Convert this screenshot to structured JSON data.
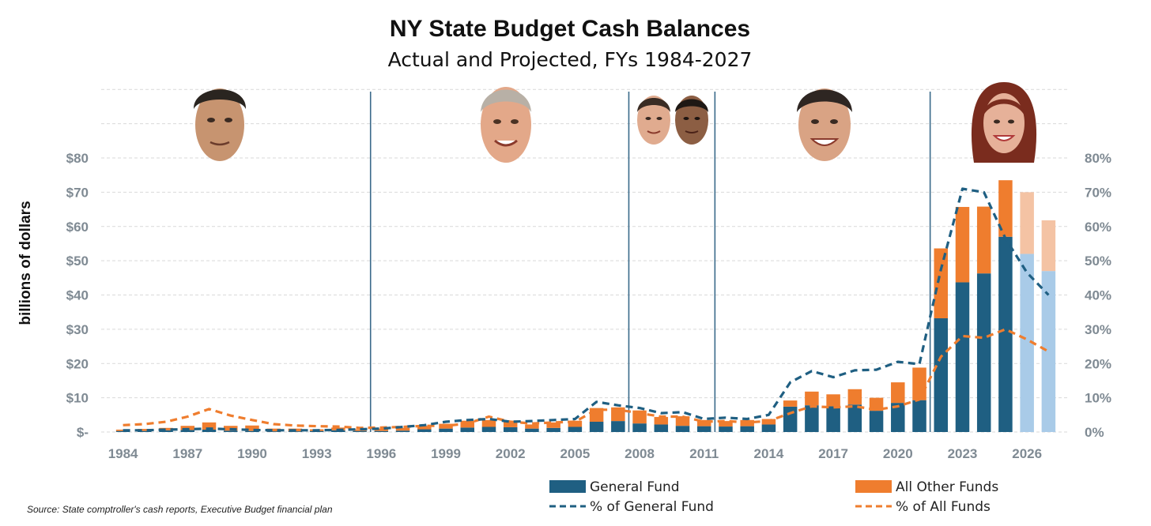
{
  "chart_data": {
    "type": "bar",
    "title": "NY State Budget Cash Balances",
    "subtitle": "Actual and Projected, FYs 1984-2027",
    "ylabel": "billions of dollars",
    "ylim": [
      0,
      80
    ],
    "y2lim": [
      0,
      80
    ],
    "y_ticks": [
      "$-",
      "$10",
      "$20",
      "$30",
      "$40",
      "$50",
      "$60",
      "$70",
      "$80"
    ],
    "y2_ticks": [
      "0%",
      "10%",
      "20%",
      "30%",
      "40%",
      "50%",
      "60%",
      "70%",
      "80%"
    ],
    "x_ticks": [
      "1984",
      "1987",
      "1990",
      "1993",
      "1996",
      "1999",
      "2002",
      "2005",
      "2008",
      "2011",
      "2014",
      "2017",
      "2020",
      "2023",
      "2026"
    ],
    "categories": [
      1984,
      1985,
      1986,
      1987,
      1988,
      1989,
      1990,
      1991,
      1992,
      1993,
      1994,
      1995,
      1996,
      1997,
      1998,
      1999,
      2000,
      2001,
      2002,
      2003,
      2004,
      2005,
      2006,
      2007,
      2008,
      2009,
      2010,
      2011,
      2012,
      2013,
      2014,
      2015,
      2016,
      2017,
      2018,
      2019,
      2020,
      2021,
      2022,
      2023,
      2024,
      2025,
      2026,
      2027
    ],
    "projected_from": 2026,
    "series": [
      {
        "name": "General Fund",
        "kind": "bar",
        "color": "#1f5f82",
        "projected_color": "#a9cbe8",
        "values": [
          0.3,
          0.3,
          0.5,
          0.6,
          0.7,
          0.4,
          0.3,
          0.2,
          0.2,
          0.3,
          0.5,
          0.3,
          0.3,
          0.4,
          0.8,
          1.0,
          1.3,
          1.5,
          1.4,
          1.0,
          1.2,
          1.5,
          3.0,
          3.2,
          2.5,
          2.2,
          1.8,
          1.7,
          1.6,
          1.7,
          2.2,
          7.4,
          7.8,
          7.5,
          8.0,
          6.2,
          8.5,
          9.3,
          33.2,
          43.7,
          46.3,
          57.0,
          52.0,
          47.0
        ]
      },
      {
        "name": "All Other Funds",
        "kind": "bar",
        "color": "#ef7d2e",
        "projected_color": "#f4c3a4",
        "values": [
          0.4,
          0.6,
          0.7,
          1.2,
          2.1,
          1.4,
          1.6,
          0.8,
          0.8,
          0.5,
          0.8,
          0.5,
          0.7,
          0.8,
          1.0,
          1.4,
          2.0,
          2.0,
          1.6,
          1.2,
          1.6,
          1.8,
          4.0,
          4.0,
          3.8,
          2.2,
          2.8,
          1.8,
          1.6,
          1.8,
          1.6,
          1.8,
          4.0,
          3.5,
          4.5,
          3.8,
          6.0,
          9.5,
          20.4,
          22.0,
          19.5,
          16.5,
          18.0,
          14.8
        ]
      },
      {
        "name": "% of General Fund",
        "kind": "line",
        "dash": "dashed",
        "color": "#1f5f82",
        "values": [
          0.5,
          0.5,
          0.7,
          0.8,
          1.0,
          0.8,
          0.6,
          0.5,
          0.5,
          0.5,
          0.6,
          0.8,
          1.0,
          1.5,
          2.0,
          3.0,
          3.5,
          3.8,
          3.0,
          3.2,
          3.5,
          3.8,
          8.8,
          7.8,
          7.0,
          5.5,
          5.8,
          3.8,
          4.2,
          3.8,
          5.0,
          14.5,
          17.8,
          16.0,
          18.0,
          18.2,
          20.5,
          19.8,
          47.5,
          71.0,
          70.0,
          56.5,
          46.5,
          40.0
        ]
      },
      {
        "name": "% of All Funds",
        "kind": "line",
        "dash": "dashed",
        "color": "#ef7d2e",
        "values": [
          2.0,
          2.3,
          3.0,
          4.5,
          6.7,
          4.8,
          3.5,
          2.3,
          1.9,
          1.7,
          1.6,
          1.2,
          1.3,
          1.5,
          1.8,
          1.8,
          2.5,
          4.5,
          3.0,
          2.5,
          2.8,
          3.0,
          6.5,
          6.5,
          5.5,
          4.5,
          4.5,
          3.0,
          3.2,
          2.8,
          3.2,
          5.5,
          7.5,
          7.2,
          7.5,
          6.5,
          7.5,
          9.5,
          22.0,
          28.0,
          27.5,
          30.0,
          27.0,
          23.5
        ]
      }
    ],
    "administration_dividers_after_year": [
      1995,
      2007,
      2011,
      2021
    ]
  },
  "legend": {
    "general_fund": "General Fund",
    "all_other_funds": "All Other Funds",
    "pct_general_fund": "% of General Fund",
    "pct_all_funds": "% of All Funds"
  },
  "source": "Source: State comptroller's cash reports, Executive Budget financial plan"
}
